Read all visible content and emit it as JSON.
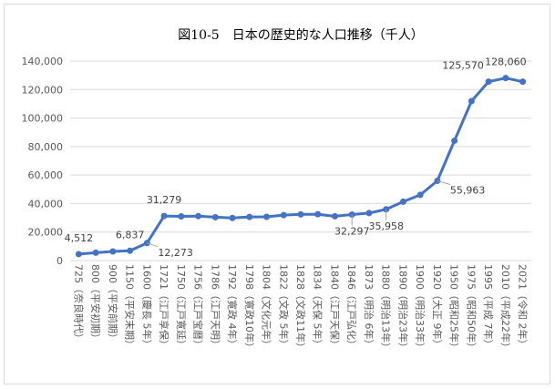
{
  "chart_data": {
    "type": "line",
    "title": "図10-5　日本の歴史的な人口推移（千人）",
    "ylim": [
      0,
      140000
    ],
    "yticks": [
      0,
      20000,
      40000,
      60000,
      80000,
      100000,
      120000,
      140000
    ],
    "ytick_labels": [
      "0",
      "20,000",
      "40,000",
      "60,000",
      "80,000",
      "100,000",
      "120,000",
      "140,000"
    ],
    "grid": true,
    "legend": "none",
    "line_color": "#4472c4",
    "categories": [
      "725（奈良時代）",
      "800（平安初期）",
      "900（平安前期）",
      "1150（平安末期）",
      "1600（慶長 5年）",
      "1721（江戸享保）",
      "1750（江戸寛延）",
      "1756（江戸宝暦）",
      "1786（江戸天明）",
      "1792（寛政 4年）",
      "1798（寛政10年）",
      "1804（文化元年）",
      "1822（文政 5年）",
      "1828（文政11年）",
      "1834（天保 5年）",
      "1840（江戸天保）",
      "1846（江戸弘化）",
      "1873（明治 6年）",
      "1880（明治13年）",
      "1890（明治23年）",
      "1900（明治33年）",
      "1920（大正 9年）",
      "1950（昭和25年）",
      "1975（昭和50年）",
      "1995（平成 7年）",
      "2010（平成22年）",
      "2021（令和 2年）"
    ],
    "series": [
      {
        "values": [
          4512,
          5500,
          6400,
          6837,
          12273,
          31279,
          31000,
          31200,
          30400,
          29900,
          30600,
          30700,
          31900,
          32400,
          32500,
          31100,
          32297,
          33300,
          35958,
          41300,
          46100,
          55963,
          84100,
          111900,
          125570,
          128060,
          125500
        ]
      }
    ],
    "data_labels": [
      {
        "index": 0,
        "text": "4,512",
        "anchor": "above"
      },
      {
        "index": 3,
        "text": "6,837",
        "anchor": "above"
      },
      {
        "index": 4,
        "text": "12,273",
        "anchor": "right-below"
      },
      {
        "index": 5,
        "text": "31,279",
        "anchor": "above"
      },
      {
        "index": 16,
        "text": "32,297",
        "anchor": "below"
      },
      {
        "index": 18,
        "text": "35,958",
        "anchor": "below"
      },
      {
        "index": 21,
        "text": "55,963",
        "anchor": "right"
      },
      {
        "index": 24,
        "text": "125,570",
        "anchor": "above-left"
      },
      {
        "index": 25,
        "text": "128,060",
        "anchor": "above"
      }
    ]
  }
}
